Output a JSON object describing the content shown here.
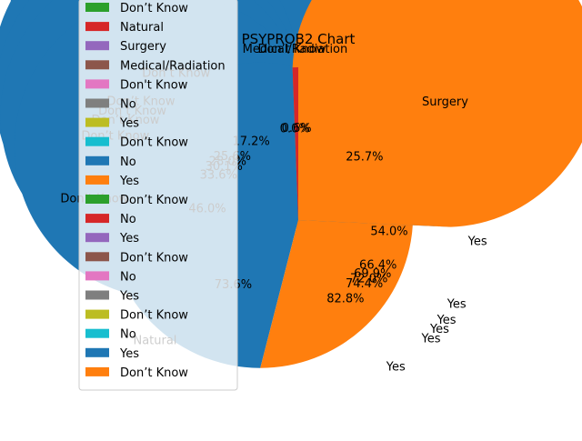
{
  "chart_data": {
    "type": "pie",
    "title": "PSYPROB2 Chart",
    "colors": [
      "#1f77b4",
      "#ff7f0e",
      "#2ca02c",
      "#d62728",
      "#9467bd",
      "#8c564b",
      "#e377c2",
      "#7f7f7f",
      "#bcbd22",
      "#17becf"
    ],
    "pies": [
      {
        "slices": [
          {
            "label": "Yes",
            "value": 82.8,
            "pct": "82.8%"
          },
          {
            "label": "Don’t Know",
            "value": 17.2,
            "pct": "17.2%"
          }
        ]
      },
      {
        "slices": [
          {
            "label": "Yes",
            "value": 74.4,
            "pct": "74.4%"
          },
          {
            "label": "Don’t Know",
            "value": 25.6,
            "pct": "25.6%"
          }
        ]
      },
      {
        "slices": [
          {
            "label": "Yes",
            "value": 72.0,
            "pct": "72.0%"
          },
          {
            "label": "Don’t Know",
            "value": 28.0,
            "pct": "28.0%"
          }
        ]
      },
      {
        "slices": [
          {
            "label": "Yes",
            "value": 69.9,
            "pct": "69.9%"
          },
          {
            "label": "Don’t Know",
            "value": 30.1,
            "pct": "30.1%"
          }
        ]
      },
      {
        "slices": [
          {
            "label": "Yes",
            "value": 66.4,
            "pct": "66.4%"
          },
          {
            "label": "Don’t Know",
            "value": 33.6,
            "pct": "33.6%"
          }
        ]
      },
      {
        "slices": [
          {
            "label": "Yes",
            "value": 54.0,
            "pct": "54.0%"
          },
          {
            "label": "Don’t Know",
            "value": 46.0,
            "pct": "46.0%"
          }
        ]
      },
      {
        "slices": [
          {
            "label": "Surgery",
            "value": 25.7,
            "pct": "25.7%"
          },
          {
            "label": "Natural",
            "value": 73.6,
            "pct": "73.6%"
          },
          {
            "label": "Don’t Know",
            "value": 0.0,
            "pct": "0.0%"
          },
          {
            "label": "Medical/Radiation",
            "value": 0.6,
            "pct": "0.6%"
          }
        ]
      }
    ],
    "legend": {
      "placement": "upper-left",
      "entries": [
        "Don’t Know",
        "Natural",
        "Surgery",
        "Medical/Radiation",
        "Don't Know",
        "No",
        "Yes",
        "Don’t Know",
        "No",
        "Yes",
        "Don’t Know",
        "No",
        "Yes",
        "Don’t Know",
        "No",
        "Yes",
        "Don’t Know",
        "No",
        "Yes",
        "Don’t Know"
      ]
    }
  }
}
